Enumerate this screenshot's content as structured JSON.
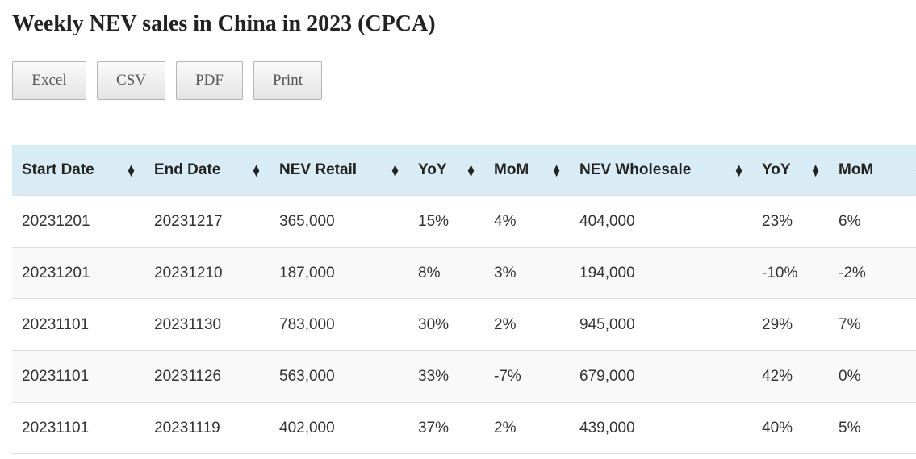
{
  "title": "Weekly NEV sales in China in 2023 (CPCA)",
  "buttons": [
    "Excel",
    "CSV",
    "PDF",
    "Print"
  ],
  "columns": [
    "Start Date",
    "End Date",
    "NEV Retail",
    "YoY",
    "MoM",
    "NEV Wholesale",
    "YoY",
    "MoM"
  ],
  "rows": [
    [
      "20231201",
      "20231217",
      "365,000",
      "15%",
      "4%",
      "404,000",
      "23%",
      "6%"
    ],
    [
      "20231201",
      "20231210",
      "187,000",
      "8%",
      "3%",
      "194,000",
      "-10%",
      "-2%"
    ],
    [
      "20231101",
      "20231130",
      "783,000",
      "30%",
      "2%",
      "945,000",
      "29%",
      "7%"
    ],
    [
      "20231101",
      "20231126",
      "563,000",
      "33%",
      "-7%",
      "679,000",
      "42%",
      "0%"
    ],
    [
      "20231101",
      "20231119",
      "402,000",
      "37%",
      "2%",
      "439,000",
      "40%",
      "5%"
    ]
  ]
}
